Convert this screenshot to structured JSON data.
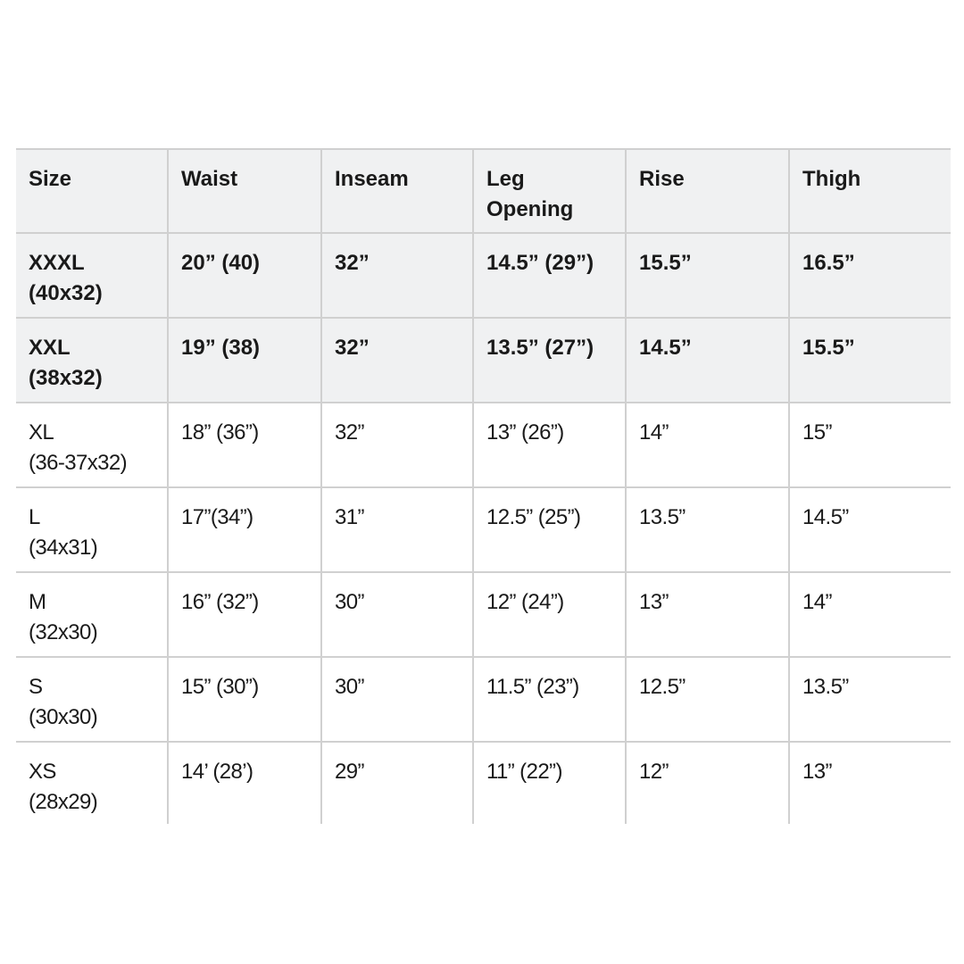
{
  "table": {
    "headers": [
      "Size",
      "Waist",
      "Inseam",
      "Leg\nOpening",
      "Rise",
      "Thigh"
    ],
    "rows": [
      {
        "bold": true,
        "cells": [
          "XXXL\n(40x32)",
          "20” (40)",
          "32”",
          "14.5” (29”)",
          "15.5”",
          "16.5”"
        ]
      },
      {
        "bold": true,
        "cells": [
          "XXL\n(38x32)",
          "19” (38)",
          "32”",
          "13.5” (27”)",
          "14.5”",
          "15.5”"
        ]
      },
      {
        "bold": false,
        "cells": [
          "XL\n(36-37x32)",
          "18” (36”)",
          "32”",
          "13” (26”)",
          "14”",
          "15”"
        ]
      },
      {
        "bold": false,
        "cells": [
          "L\n(34x31)",
          "17”(34”)",
          "31”",
          "12.5” (25”)",
          "13.5”",
          "14.5”"
        ]
      },
      {
        "bold": false,
        "cells": [
          "M\n(32x30)",
          "16” (32”)",
          "30”",
          "12” (24”)",
          "13”",
          "14”"
        ]
      },
      {
        "bold": false,
        "cells": [
          "S\n(30x30)",
          "15” (30”)",
          "30”",
          "11.5” (23”)",
          "12.5”",
          "13.5”"
        ]
      },
      {
        "bold": false,
        "cells": [
          "XS\n(28x29)",
          "14’ (28’)",
          "29”",
          "11” (22”)",
          "12”",
          "13”"
        ]
      }
    ]
  }
}
